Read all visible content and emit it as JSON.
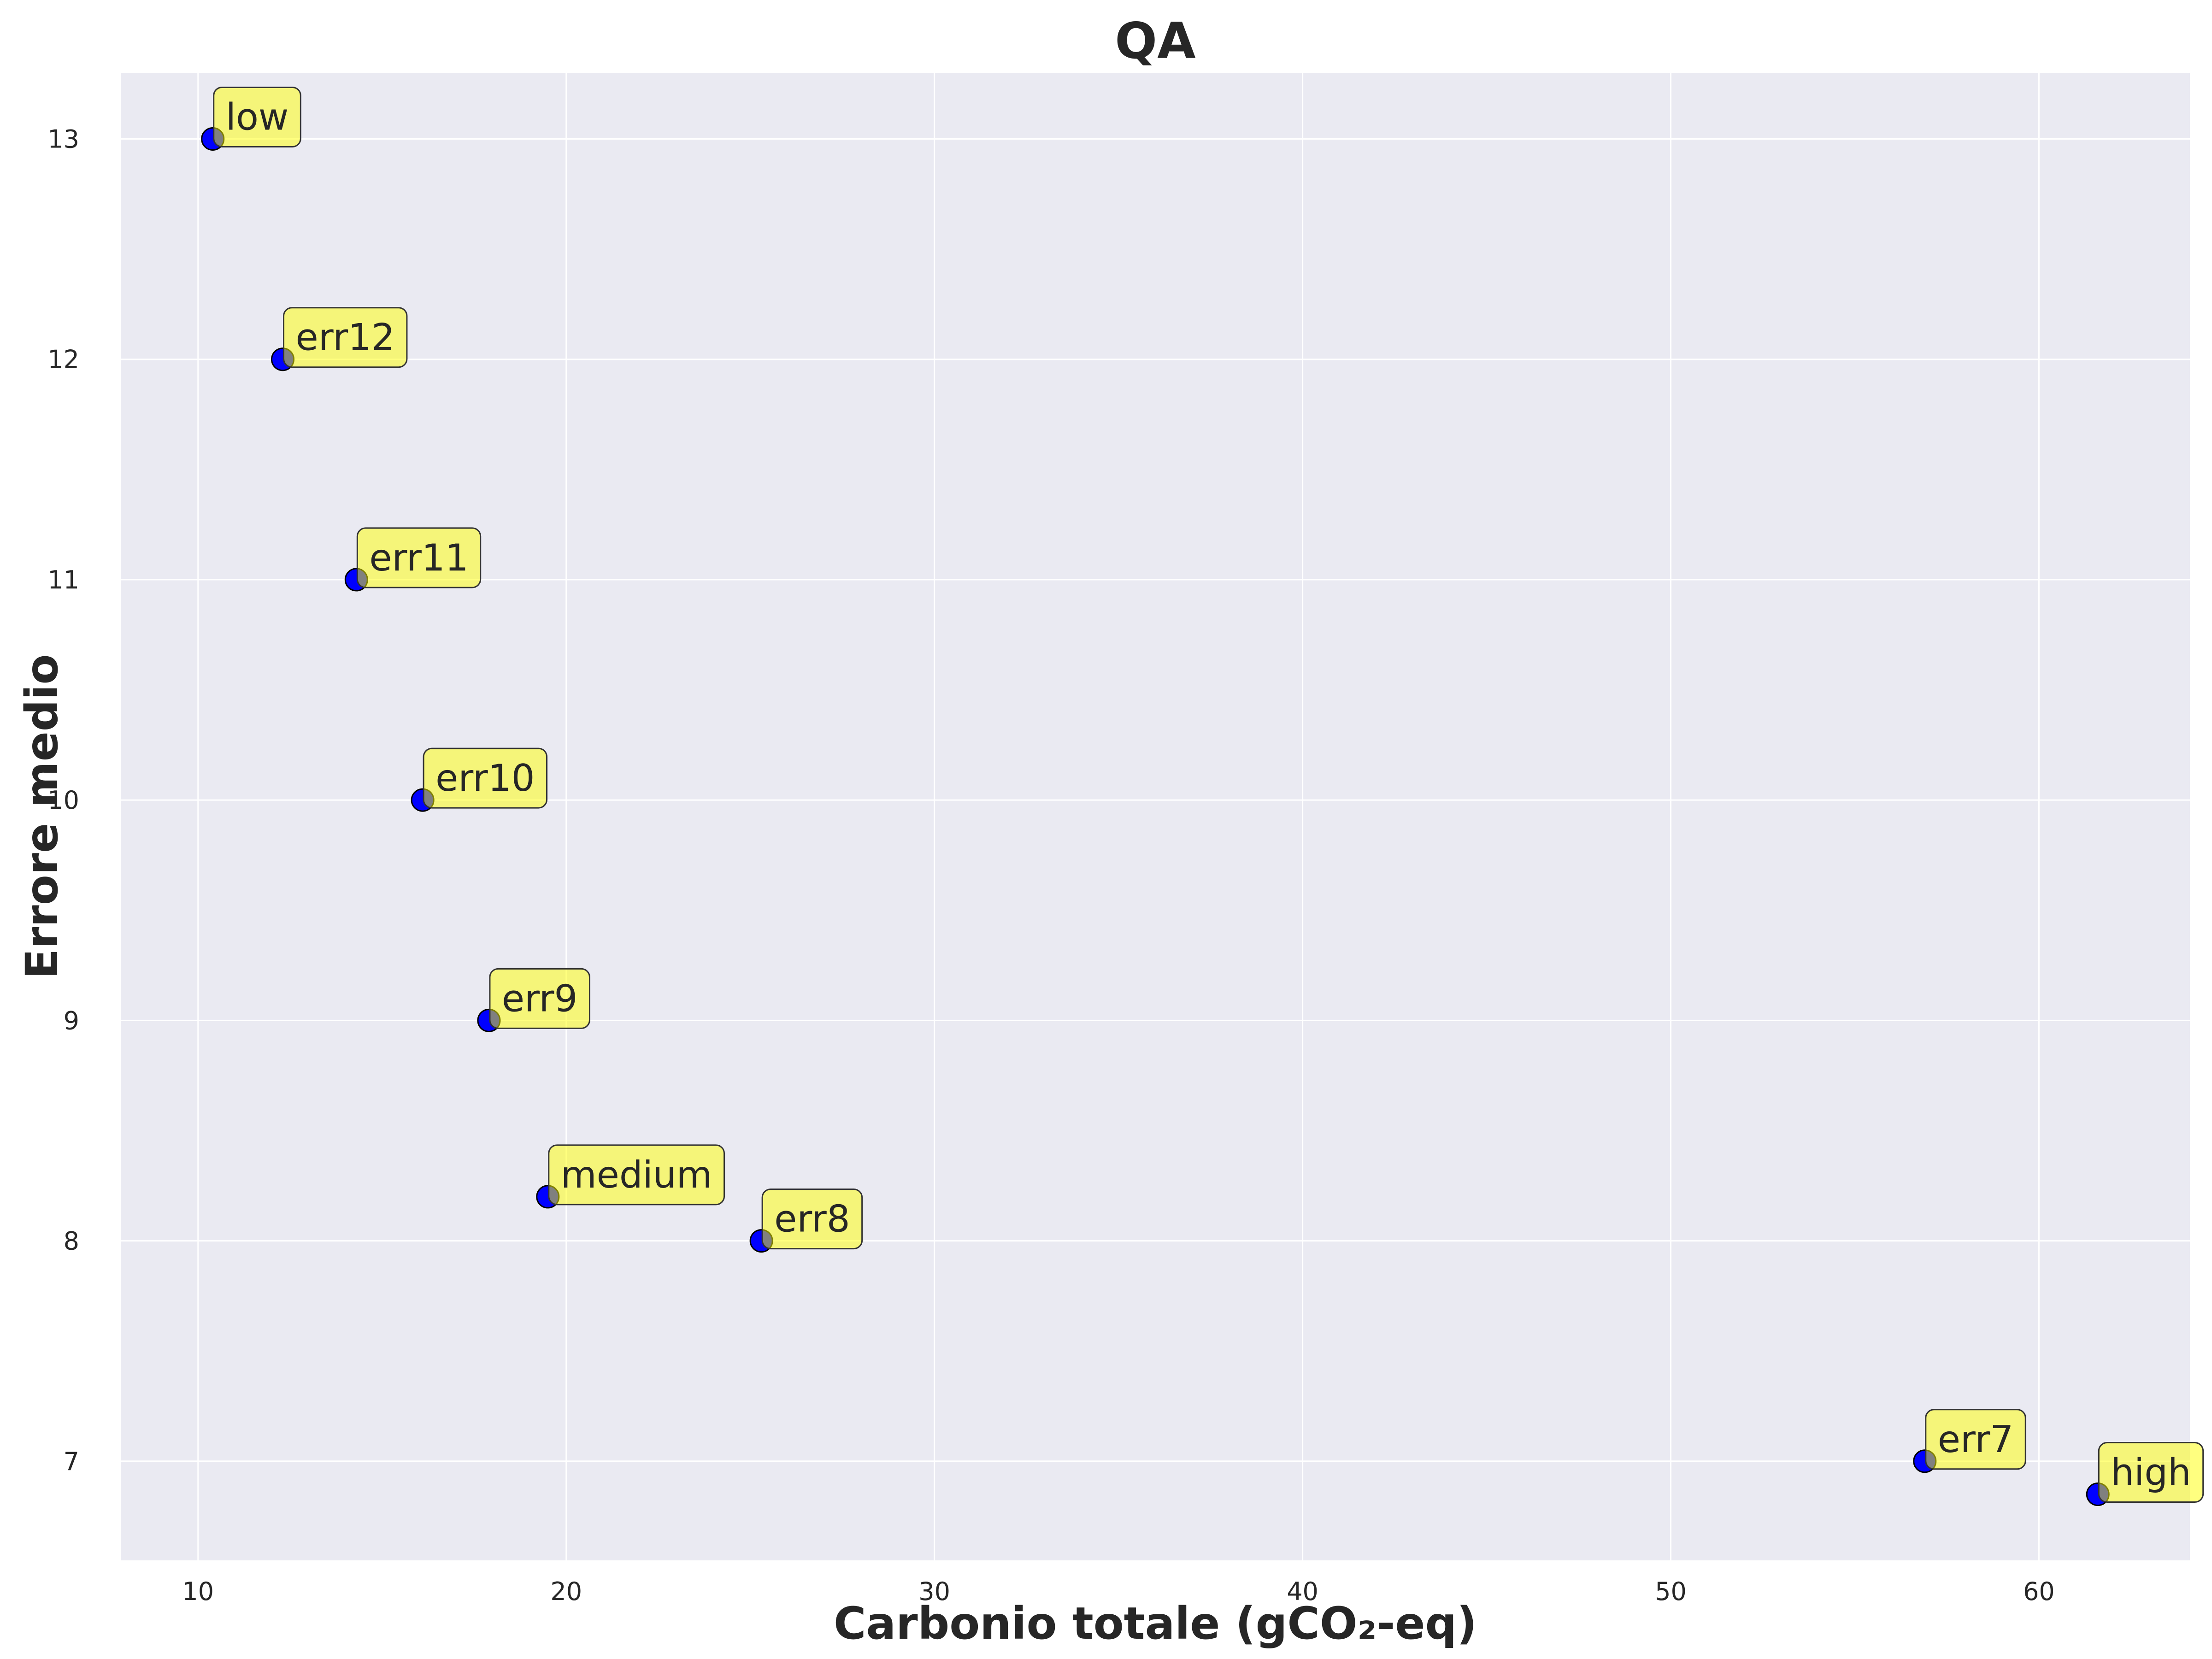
{
  "chart_data": {
    "type": "scatter",
    "title": "QA",
    "xlabel": "Carbonio totale (gCO₂-eq)",
    "ylabel": "Errore medio",
    "xlim": [
      7.9,
      64.1
    ],
    "ylim": [
      6.55,
      13.3
    ],
    "xticks": [
      10,
      20,
      30,
      40,
      50,
      60
    ],
    "yticks": [
      7,
      8,
      9,
      10,
      11,
      12,
      13
    ],
    "grid": true,
    "colors": {
      "background": "#eaeaf2",
      "grid": "#ffffff",
      "point_fill": "#0000ff",
      "point_edge": "#000000",
      "label_box": "#ffff00"
    },
    "points": [
      {
        "label": "low",
        "x": 10.4,
        "y": 13.0
      },
      {
        "label": "err12",
        "x": 12.3,
        "y": 12.0
      },
      {
        "label": "err11",
        "x": 14.3,
        "y": 11.0
      },
      {
        "label": "err10",
        "x": 16.1,
        "y": 10.0
      },
      {
        "label": "err9",
        "x": 17.9,
        "y": 9.0
      },
      {
        "label": "medium",
        "x": 19.5,
        "y": 8.2
      },
      {
        "label": "err8",
        "x": 25.3,
        "y": 8.0
      },
      {
        "label": "err7",
        "x": 56.9,
        "y": 7.0
      },
      {
        "label": "high",
        "x": 61.6,
        "y": 6.85
      }
    ]
  }
}
